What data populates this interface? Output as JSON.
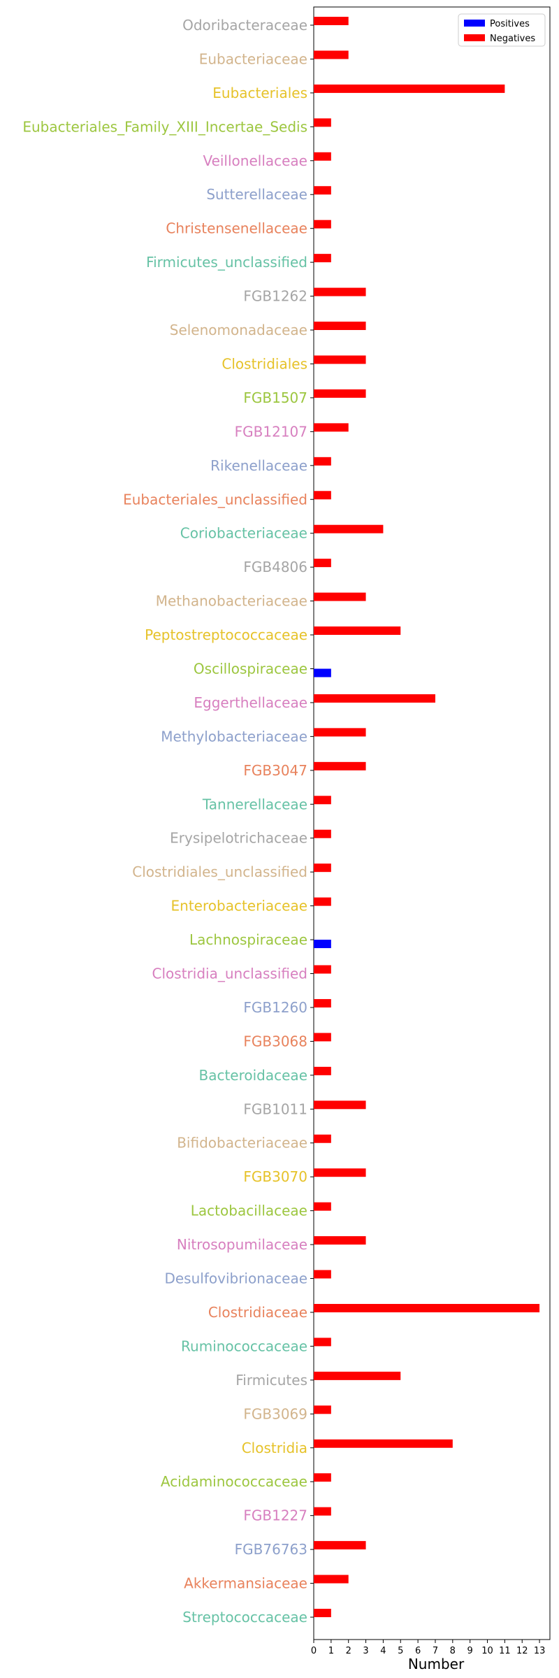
{
  "chart_data": {
    "type": "bar",
    "orientation": "horizontal",
    "xlabel": "Number",
    "ylabel": "",
    "xlim": [
      0,
      13.6
    ],
    "xticks": [
      0,
      1,
      2,
      3,
      4,
      5,
      6,
      7,
      8,
      9,
      10,
      11,
      12,
      13
    ],
    "legend_position": "top-right",
    "grid": false,
    "categories": [
      "Odoribacteraceae",
      "Eubacteriaceae",
      "Eubacteriales",
      "Eubacteriales_Family_XIII_Incertae_Sedis",
      "Veillonellaceae",
      "Sutterellaceae",
      "Christensenellaceae",
      "Firmicutes_unclassified",
      "FGB1262",
      "Selenomonadaceae",
      "Clostridiales",
      "FGB1507",
      "FGB12107",
      "Rikenellaceae",
      "Eubacteriales_unclassified",
      "Coriobacteriaceae",
      "FGB4806",
      "Methanobacteriaceae",
      "Peptostreptococcaceae",
      "Oscillospiraceae",
      "Eggerthellaceae",
      "Methylobacteriaceae",
      "FGB3047",
      "Tannerellaceae",
      "Erysipelotrichaceae",
      "Clostridiales_unclassified",
      "Enterobacteriaceae",
      "Lachnospiraceae",
      "Clostridia_unclassified",
      "FGB1260",
      "FGB3068",
      "Bacteroidaceae",
      "FGB1011",
      "Bifidobacteriaceae",
      "FGB3070",
      "Lactobacillaceae",
      "Nitrosopumilaceae",
      "Desulfovibrionaceae",
      "Clostridiaceae",
      "Ruminococcaceae",
      "Firmicutes",
      "FGB3069",
      "Clostridia",
      "Acidaminococcaceae",
      "FGB1227",
      "FGB76763",
      "Akkermansiaceae",
      "Streptococcaceae"
    ],
    "label_colors": [
      "#a5a5a5",
      "#d2b48c",
      "#e6c229",
      "#9cc63f",
      "#d77fbf",
      "#8da0cb",
      "#e8825c",
      "#66c2a5"
    ],
    "series": [
      {
        "name": "Positives",
        "color": "#0000ff",
        "values": [
          0,
          0,
          0,
          0,
          0,
          0,
          0,
          0,
          0,
          0,
          0,
          0,
          0,
          0,
          0,
          0,
          0,
          0,
          0,
          1,
          0,
          0,
          0,
          0,
          0,
          0,
          0,
          1,
          0,
          0,
          0,
          0,
          0,
          0,
          0,
          0,
          0,
          0,
          0,
          0,
          0,
          0,
          0,
          0,
          0,
          0,
          0,
          0
        ]
      },
      {
        "name": "Negatives",
        "color": "#ff0000",
        "values": [
          2,
          2,
          11,
          1,
          1,
          1,
          1,
          1,
          3,
          3,
          3,
          3,
          2,
          1,
          1,
          4,
          1,
          3,
          5,
          0,
          7,
          3,
          3,
          1,
          1,
          1,
          1,
          0,
          1,
          1,
          1,
          1,
          3,
          1,
          3,
          1,
          3,
          1,
          13,
          1,
          5,
          1,
          8,
          1,
          1,
          3,
          2,
          1
        ]
      }
    ]
  }
}
